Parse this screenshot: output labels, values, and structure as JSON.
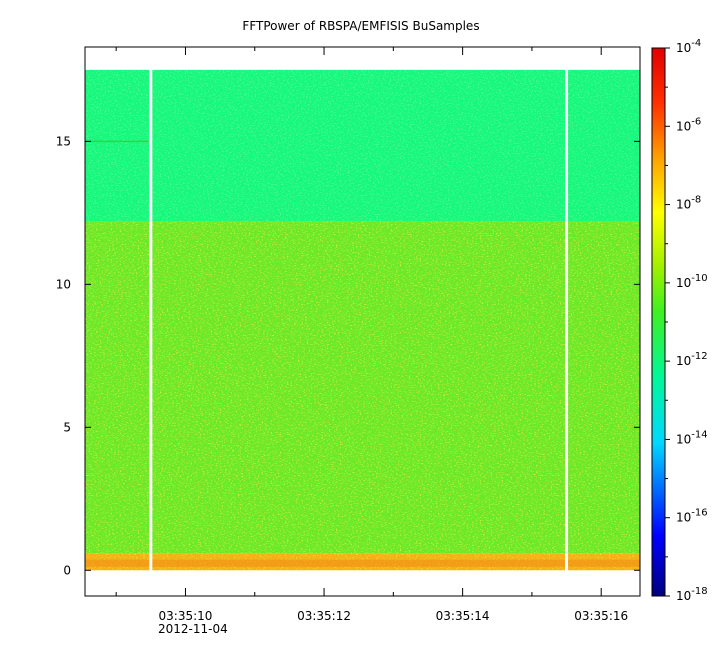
{
  "chart_data": {
    "type": "heatmap",
    "title": "FFTPower of RBSPA/EMFISIS  BuSamples",
    "xlabel": "",
    "ylabel": "",
    "x_ticks": [
      {
        "label": "03:35:10",
        "value": 10
      },
      {
        "label": "03:35:12",
        "value": 12
      },
      {
        "label": "03:35:14",
        "value": 14
      },
      {
        "label": "03:35:16",
        "value": 16
      }
    ],
    "x_minor_ticks": [
      9,
      11,
      13,
      15
    ],
    "x_date_label": "2012-11-04",
    "xlim": [
      8.55,
      16.56
    ],
    "ylim": [
      -0.9,
      18.3
    ],
    "y_ticks": [
      0,
      5,
      10,
      15
    ],
    "colorbar": {
      "scale": "log",
      "range_exponent": [
        -18,
        -4
      ],
      "tick_exponents": [
        -4,
        -6,
        -8,
        -10,
        -12,
        -14,
        -16,
        -18
      ],
      "tick_base": "10"
    },
    "data_extent": {
      "x": [
        8.55,
        16.56
      ],
      "y": [
        0,
        17.5
      ]
    },
    "gap_times": [
      9.5,
      15.5
    ],
    "bands": [
      {
        "y_range": [
          12.2,
          17.5
        ],
        "level_exponent": -12.5,
        "description_color": "#19f87d"
      },
      {
        "y_range": [
          0.6,
          12.2
        ],
        "level_exponent": -10.5,
        "description_color": "#6be82a"
      },
      {
        "y_range": [
          0.0,
          0.6
        ],
        "level_exponent": -8.5,
        "description_color": "#f4b018"
      }
    ],
    "narrowband_line": {
      "y": 15.0,
      "x_range": [
        8.55,
        9.5
      ]
    }
  }
}
